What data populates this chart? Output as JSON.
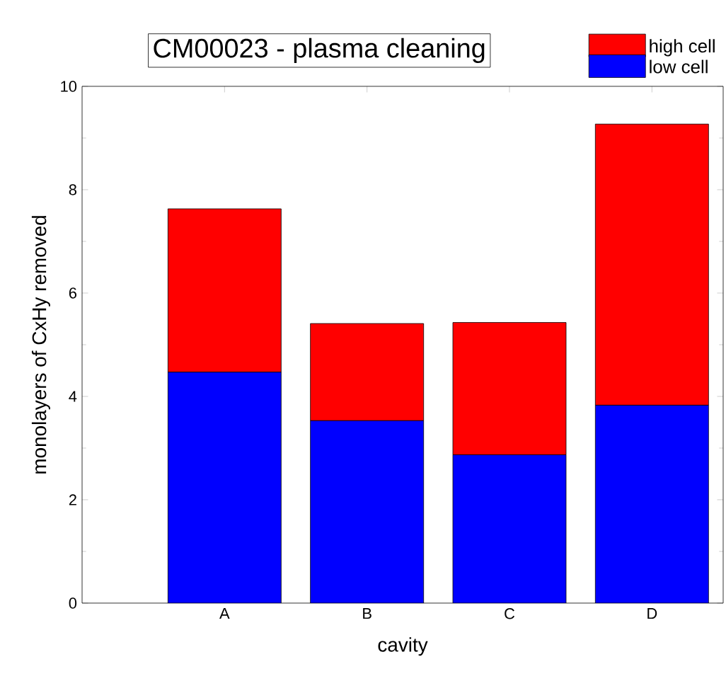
{
  "chart_data": {
    "type": "bar",
    "title": "CM00023 - plasma cleaning",
    "xlabel": "cavity",
    "ylabel": "monolayers of CxHy removed",
    "categories": [
      "A",
      "B",
      "C",
      "D"
    ],
    "stacked": true,
    "series": [
      {
        "name": "low cell",
        "color": "#0000ff",
        "values": [
          4.47,
          3.53,
          2.87,
          3.83
        ]
      },
      {
        "name": "high cell",
        "color": "#ff0000",
        "values": [
          3.16,
          1.88,
          2.56,
          5.44
        ]
      }
    ],
    "ylim": [
      0,
      10
    ],
    "yticks": [
      0,
      2,
      4,
      6,
      8,
      10
    ],
    "grid": false,
    "legend": "top right"
  }
}
